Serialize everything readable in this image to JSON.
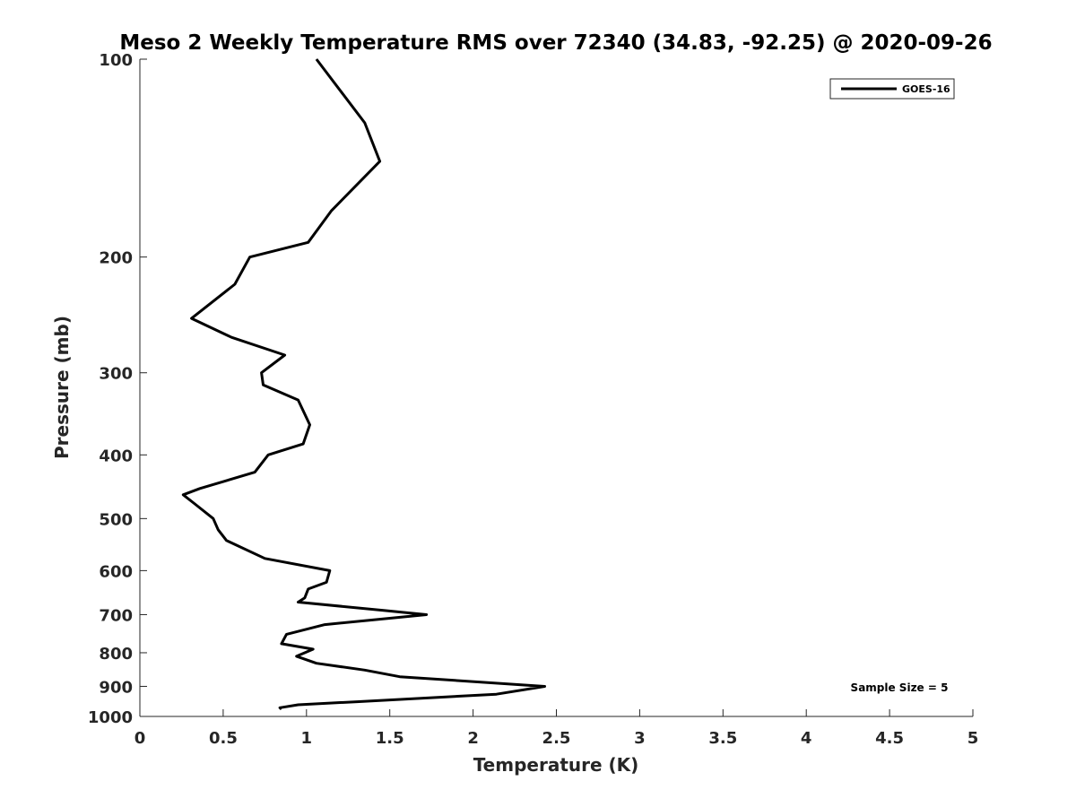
{
  "chart_data": {
    "type": "line",
    "title": "Meso 2 Weekly Temperature RMS over 72340 (34.83, -92.25) @ 2020-09-26",
    "xlabel": "Temperature (K)",
    "ylabel": "Pressure (mb)",
    "xlim": [
      0,
      5
    ],
    "ylim": [
      100,
      1000
    ],
    "y_scale": "log",
    "y_reversed": true,
    "grid": false,
    "x_ticks": [
      0,
      0.5,
      1,
      1.5,
      2,
      2.5,
      3,
      3.5,
      4,
      4.5,
      5
    ],
    "x_tick_labels": [
      "0",
      "0.5",
      "1",
      "1.5",
      "2",
      "2.5",
      "3",
      "3.5",
      "4",
      "4.5",
      "5"
    ],
    "y_ticks": [
      100,
      200,
      300,
      400,
      500,
      600,
      700,
      800,
      900,
      1000
    ],
    "y_tick_labels": [
      "100",
      "200",
      "300",
      "400",
      "500",
      "600",
      "700",
      "800",
      "900",
      "1000"
    ],
    "legend": {
      "placement": "top-right",
      "entries": [
        "GOES-16"
      ]
    },
    "annotation": "Sample Size = 5",
    "series": [
      {
        "name": "GOES-16",
        "color": "#000000",
        "x": [
          1.06,
          1.35,
          1.44,
          1.15,
          1.01,
          0.66,
          0.57,
          0.31,
          0.55,
          0.87,
          0.73,
          0.74,
          0.95,
          1.02,
          0.98,
          0.77,
          0.69,
          0.36,
          0.26,
          0.33,
          0.44,
          0.47,
          0.52,
          0.75,
          1.14,
          1.12,
          1.01,
          0.99,
          0.95,
          1.47,
          1.72,
          1.11,
          0.88,
          0.85,
          1.04,
          0.94,
          1.06,
          1.35,
          1.56,
          2.43,
          2.14,
          1.29,
          0.95,
          0.84,
          0.85
        ],
        "y": [
          100,
          125,
          143,
          170,
          190,
          200,
          220,
          248,
          265,
          282,
          300,
          313,
          330,
          360,
          385,
          400,
          425,
          450,
          460,
          475,
          500,
          520,
          540,
          575,
          600,
          625,
          640,
          660,
          670,
          690,
          700,
          725,
          750,
          775,
          790,
          810,
          830,
          850,
          870,
          900,
          925,
          950,
          960,
          970,
          975
        ]
      }
    ]
  }
}
